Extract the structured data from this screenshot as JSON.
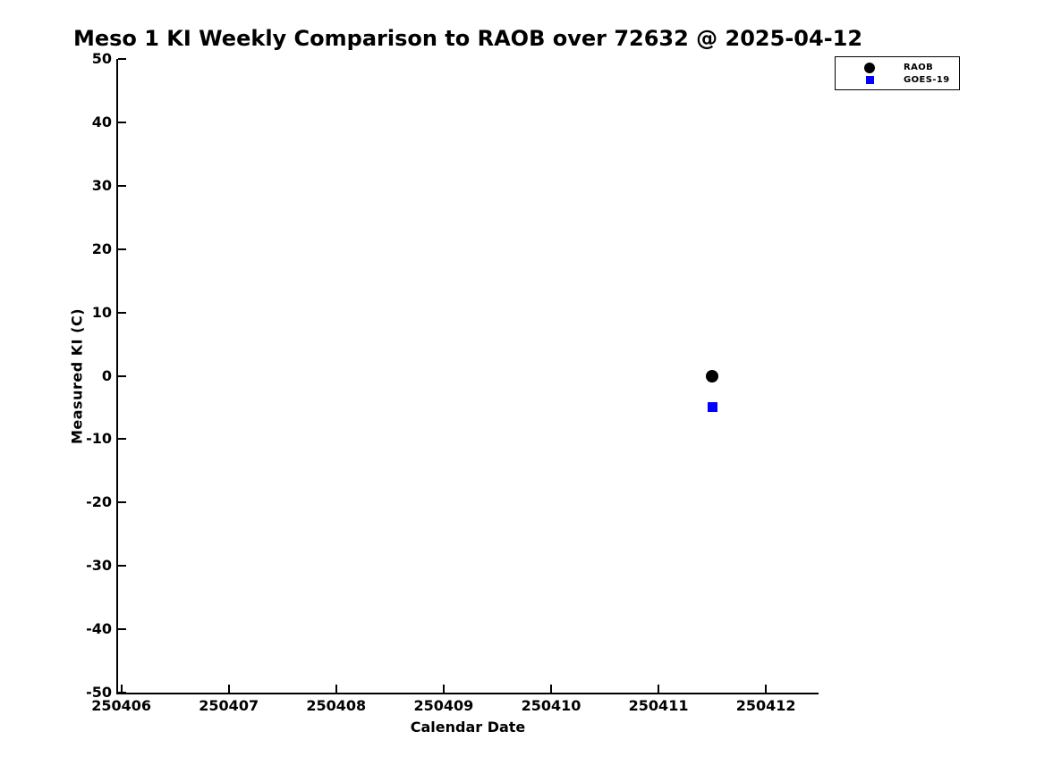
{
  "figure": {
    "title": "Meso 1 KI Weekly Comparison to RAOB over 72632 @ 2025-04-12",
    "xlabel": "Calendar Date",
    "ylabel": "Measured KI (C)"
  },
  "legend": {
    "items": [
      {
        "label": "RAOB",
        "marker": "circle-icon",
        "color": "#000000"
      },
      {
        "label": "GOES-19",
        "marker": "square-icon",
        "color": "#0000ff"
      }
    ]
  },
  "chart_data": {
    "type": "scatter",
    "title": "Meso 1 KI Weekly Comparison to RAOB over 72632 @ 2025-04-12",
    "xlabel": "Calendar Date",
    "ylabel": "Measured KI (C)",
    "xlim": [
      250405.97,
      250412.49
    ],
    "ylim": [
      -50,
      50
    ],
    "xticks": [
      250406,
      250407,
      250408,
      250409,
      250410,
      250411,
      250412
    ],
    "yticks": [
      50,
      40,
      30,
      20,
      10,
      0,
      -10,
      -20,
      -30,
      -40,
      -50
    ],
    "grid": false,
    "legend_position": "top-right-outside",
    "axis_color": "#000000",
    "background_color": "#ffffff",
    "series": [
      {
        "name": "RAOB",
        "marker": "circle",
        "color": "#000000",
        "marker_size_px": 14,
        "points": [
          {
            "x": 250411.5,
            "y": 0
          }
        ]
      },
      {
        "name": "GOES-19",
        "marker": "square",
        "color": "#0000ff",
        "marker_size_px": 11,
        "points": [
          {
            "x": 250411.5,
            "y": -5
          }
        ]
      }
    ]
  }
}
